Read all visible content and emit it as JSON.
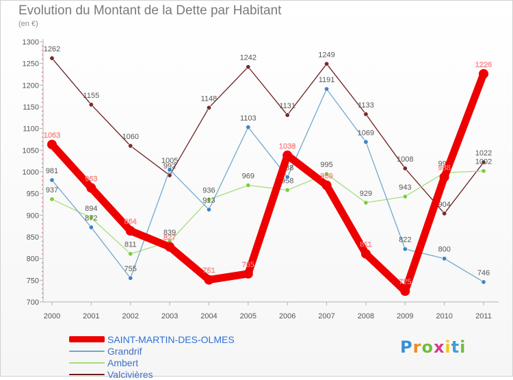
{
  "chart_data": {
    "type": "line",
    "title": "Evolution du Montant de la Dette par Habitant",
    "subtitle": "(en €)",
    "categories": [
      "2000",
      "2001",
      "2002",
      "2003",
      "2004",
      "2005",
      "2006",
      "2007",
      "2008",
      "2009",
      "2010",
      "2011"
    ],
    "ylim": [
      700,
      1300
    ],
    "yticks": [
      700,
      750,
      800,
      850,
      900,
      950,
      1000,
      1050,
      1100,
      1150,
      1200,
      1250,
      1300
    ],
    "grid": false,
    "legend_position": "bottom-left",
    "series": [
      {
        "name": "Valcivières",
        "color": "#6b1d1d",
        "marker": "#7a2a2a",
        "label_color": "#555555",
        "thick": false,
        "values": [
          1262,
          1155,
          1060,
          992,
          1148,
          1242,
          1131,
          1249,
          1133,
          1008,
          904,
          1022
        ]
      },
      {
        "name": "Ambert",
        "color": "#a6dc7c",
        "marker": "#7ccd3d",
        "label_color": "#555555",
        "thick": false,
        "values": [
          937,
          894,
          811,
          839,
          936,
          969,
          958,
          995,
          929,
          943,
          998,
          1002
        ]
      },
      {
        "name": "Grandrif",
        "color": "#6fa8cf",
        "marker": "#3d84c4",
        "label_color": "#555555",
        "thick": false,
        "values": [
          981,
          872,
          755,
          1005,
          913,
          1103,
          988,
          1191,
          1069,
          822,
          800,
          746
        ]
      },
      {
        "name": "SAINT-MARTIN-DES-OLMES",
        "color": "#ee0000",
        "marker": "#ee0000",
        "label_color": "#ffffff",
        "thick": true,
        "values": [
          1063,
          963,
          864,
          827,
          751,
          765,
          1038,
          969,
          811,
          725,
          988,
          1226
        ]
      }
    ],
    "legend_order": [
      "SAINT-MARTIN-DES-OLMES",
      "Grandrif",
      "Ambert",
      "Valcivières"
    ]
  },
  "brand": {
    "letters": [
      "P",
      "r",
      "o",
      "x",
      "i",
      "t",
      "i"
    ],
    "colors": [
      "#3a8fd6",
      "#f08c1e",
      "#6cbf3a",
      "#d63a8f",
      "#f0c81e",
      "#3aa0d6",
      "#6cbf3a"
    ]
  }
}
